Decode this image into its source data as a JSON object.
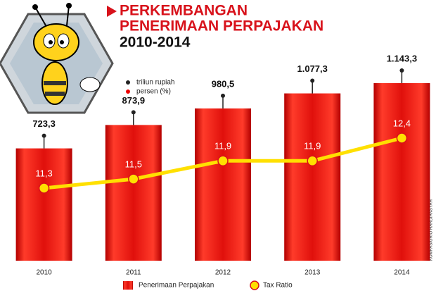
{
  "chart_data": {
    "type": "bar",
    "title_lines": [
      "PERKEMBANGAN",
      "PENERIMAAN PERPAJAKAN",
      "2010-2014"
    ],
    "unit_legend": [
      "triliun rupiah",
      "persen (%)"
    ],
    "credit": "KOMPAS/GRIO HARDIANSYAH",
    "categories": [
      "2010",
      "2011",
      "2012",
      "2013",
      "2014"
    ],
    "series": [
      {
        "name": "Penerimaan Perpajakan",
        "type": "bar",
        "color": "#d8121b",
        "values": [
          723.3,
          873.9,
          980.5,
          1077.3,
          1143.3
        ],
        "value_labels": [
          "723,3",
          "873,9",
          "980,5",
          "1.077,3",
          "1.143,3"
        ]
      },
      {
        "name": "Tax Ratio",
        "type": "line",
        "color": "#ffe000",
        "values": [
          11.3,
          11.5,
          11.9,
          11.9,
          12.4
        ],
        "value_labels": [
          "11,3",
          "11,5",
          "11,9",
          "11,9",
          "12,4"
        ]
      }
    ]
  }
}
